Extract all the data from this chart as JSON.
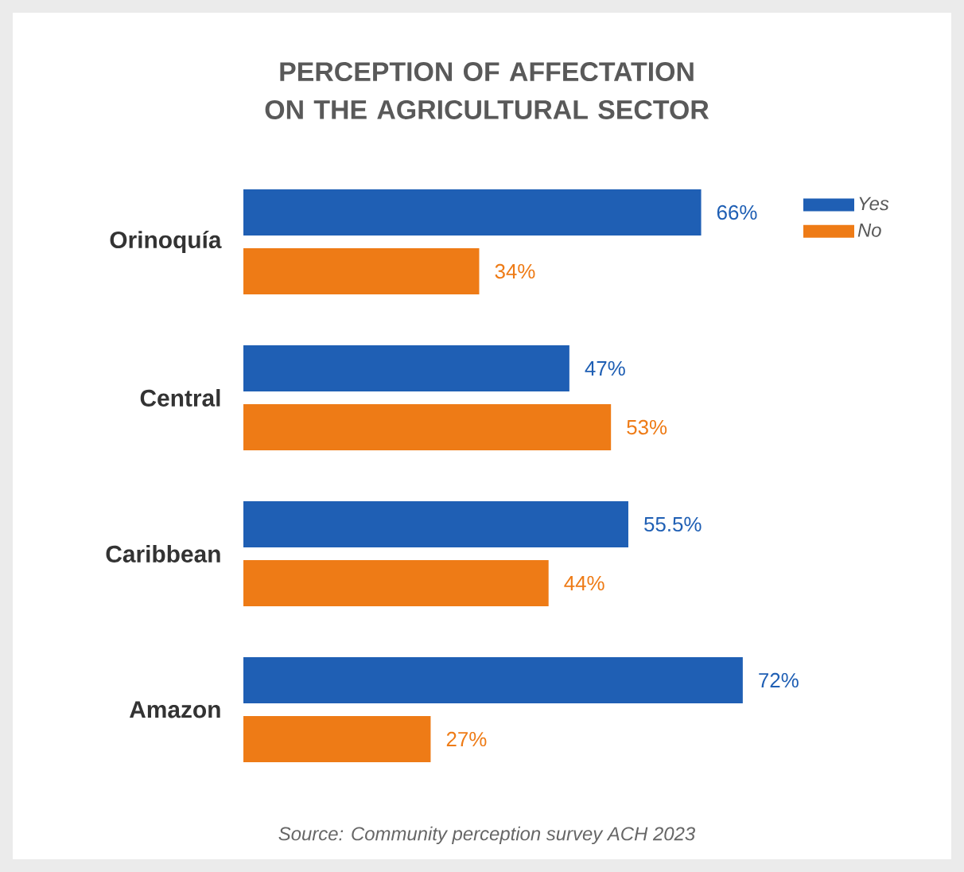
{
  "chart_data": {
    "type": "bar",
    "orientation": "horizontal",
    "title": "PERCEPTION OF AFFECTATION ON THE AGRICULTURAL SECTOR",
    "categories": [
      "Orinoquía",
      "Central",
      "Caribbean",
      "Amazon"
    ],
    "series": [
      {
        "name": "Yes",
        "color": "#1f5fb4",
        "values": [
          66,
          47,
          55.5,
          72
        ],
        "value_labels": [
          "66%",
          "47%",
          "55.5%",
          "72%"
        ]
      },
      {
        "name": "No",
        "color": "#ee7b16",
        "values": [
          34,
          53,
          44,
          27
        ],
        "value_labels": [
          "34%",
          "53%",
          "44%",
          "27%"
        ]
      }
    ],
    "legend": "top right",
    "annotations": [
      "Source: Community perception survey ACH 2023"
    ]
  }
}
